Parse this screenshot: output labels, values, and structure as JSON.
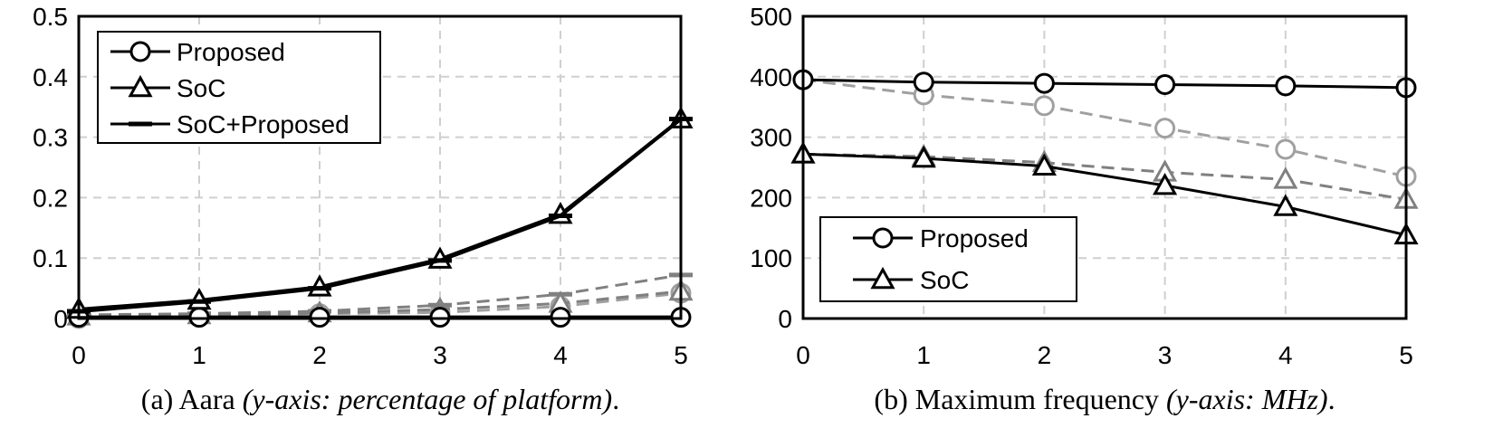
{
  "chart_data": [
    {
      "type": "line",
      "caption_main": "(a) Aara ",
      "caption_italic": "(y-axis: percentage of platform)",
      "caption_end": ".",
      "x": [
        0,
        1,
        2,
        3,
        4,
        5
      ],
      "xlim": [
        0,
        5
      ],
      "ylim": [
        0,
        0.5
      ],
      "x_ticks": [
        "0",
        "1",
        "2",
        "3",
        "4",
        "5"
      ],
      "y_ticks": [
        "0",
        "0.1",
        "0.2",
        "0.3",
        "0.4",
        "0.5"
      ],
      "y_tick_values": [
        0,
        0.1,
        0.2,
        0.3,
        0.4,
        0.5
      ],
      "grid": true,
      "legend_position": "top-left",
      "legend": [
        {
          "label": "Proposed",
          "marker": "circle",
          "color": "#000000"
        },
        {
          "label": "SoC",
          "marker": "triangle",
          "color": "#000000"
        },
        {
          "label": "SoC+Proposed",
          "marker": "dash",
          "color": "#000000"
        }
      ],
      "series": [
        {
          "name": "Proposed",
          "marker": "circle",
          "color": "#000000",
          "dashed": false,
          "width": 4,
          "values": [
            0.002,
            0.002,
            0.002,
            0.002,
            0.002,
            0.002
          ]
        },
        {
          "name": "SoC",
          "marker": "triangle",
          "color": "#000000",
          "dashed": false,
          "width": 4,
          "values": [
            0.015,
            0.03,
            0.052,
            0.098,
            0.172,
            0.33
          ]
        },
        {
          "name": "SoC+Proposed",
          "marker": "dash",
          "color": "#000000",
          "dashed": false,
          "width": 4,
          "values": [
            0.012,
            0.028,
            0.05,
            0.096,
            0.17,
            0.33
          ]
        },
        {
          "name": "",
          "marker": "circle",
          "color": "#a0a0a0",
          "dashed": true,
          "width": 3,
          "values": [
            0.0,
            0.004,
            0.008,
            0.01,
            0.02,
            0.042
          ]
        },
        {
          "name": "",
          "marker": "triangle",
          "color": "#808080",
          "dashed": true,
          "width": 3,
          "values": [
            0.004,
            0.006,
            0.009,
            0.015,
            0.025,
            0.045
          ]
        },
        {
          "name": "",
          "marker": "dash",
          "color": "#808080",
          "dashed": true,
          "width": 3,
          "values": [
            0.006,
            0.008,
            0.012,
            0.022,
            0.04,
            0.072
          ]
        }
      ]
    },
    {
      "type": "line",
      "caption_main": "(b) Maximum frequency ",
      "caption_italic": "(y-axis: MHz)",
      "caption_end": ".",
      "x": [
        0,
        1,
        2,
        3,
        4,
        5
      ],
      "xlim": [
        0,
        5
      ],
      "ylim": [
        0,
        500
      ],
      "x_ticks": [
        "0",
        "1",
        "2",
        "3",
        "4",
        "5"
      ],
      "y_ticks": [
        "0",
        "100",
        "200",
        "300",
        "400",
        "500"
      ],
      "y_tick_values": [
        0,
        100,
        200,
        300,
        400,
        500
      ],
      "grid": true,
      "legend_position": "bottom-left",
      "legend": [
        {
          "label": "Proposed",
          "marker": "circle",
          "color": "#000000"
        },
        {
          "label": "SoC",
          "marker": "triangle",
          "color": "#000000"
        }
      ],
      "series": [
        {
          "name": "Proposed",
          "marker": "circle",
          "color": "#000000",
          "dashed": false,
          "width": 3,
          "values": [
            395,
            391,
            389,
            387,
            385,
            382
          ]
        },
        {
          "name": "SoC",
          "marker": "triangle",
          "color": "#000000",
          "dashed": false,
          "width": 3,
          "values": [
            272,
            265,
            252,
            220,
            185,
            138
          ]
        },
        {
          "name": "",
          "marker": "circle",
          "color": "#a0a0a0",
          "dashed": true,
          "width": 3,
          "values": [
            395,
            370,
            352,
            315,
            280,
            235
          ]
        },
        {
          "name": "",
          "marker": "triangle",
          "color": "#808080",
          "dashed": true,
          "width": 3,
          "values": [
            272,
            268,
            258,
            242,
            230,
            197
          ]
        }
      ]
    }
  ]
}
